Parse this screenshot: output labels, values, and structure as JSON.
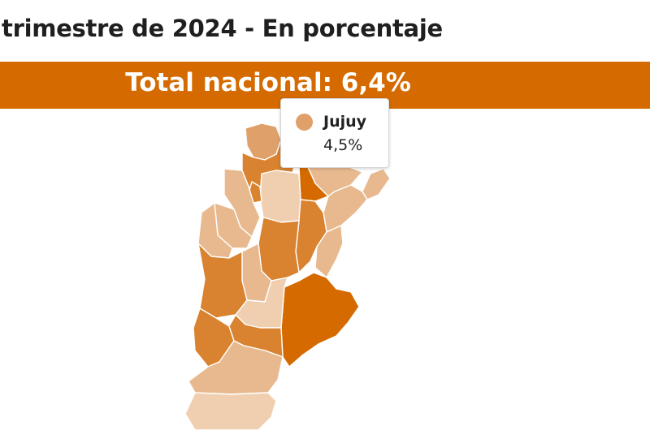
{
  "title": "trimestre de 2024 - En porcentaje",
  "banner": {
    "label": "Total nacional: 6,4%"
  },
  "tooltip": {
    "province": "Jujuy",
    "value": "4,5%",
    "color": "#e0a06a"
  },
  "colors": {
    "banner": "#d46a00",
    "scale": [
      "#f0cfb0",
      "#e8b98e",
      "#e0a06a",
      "#d9822f",
      "#d46a00"
    ]
  }
}
